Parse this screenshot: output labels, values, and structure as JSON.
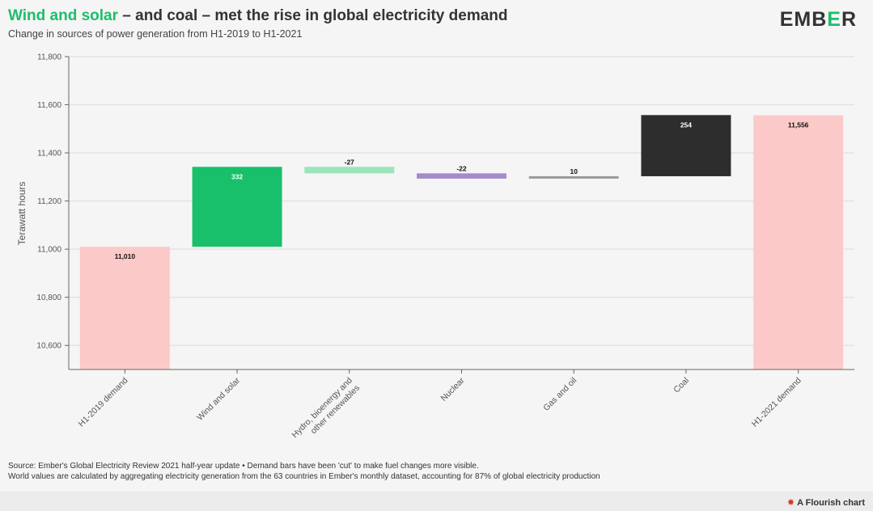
{
  "header": {
    "title_highlight": "Wind and solar",
    "title_rest": " – and coal – met the rise in global electricity demand",
    "subtitle": "Change in sources of power generation from H1-2019 to H1-2021"
  },
  "brand": {
    "logo_pre": "EMB",
    "logo_mark": "E",
    "logo_post": "R"
  },
  "colors": {
    "demand": "#fcc9c9",
    "wind_solar": "#18c06c",
    "hydro": "#9de4bc",
    "nuclear": "#a48bcb",
    "gas_oil": "#9a9a9a",
    "coal": "#2d2d2d",
    "grid": "#e3e3e3",
    "axis": "#666666"
  },
  "chart_data": {
    "type": "waterfall",
    "ylabel": "Terawatt hours",
    "ylim": [
      10500,
      11800
    ],
    "yticks": [
      10600,
      10800,
      11000,
      11200,
      11400,
      11600,
      11800
    ],
    "ytick_labels": [
      "10,600",
      "10,800",
      "11,000",
      "11,200",
      "11,400",
      "11,600",
      "11,800"
    ],
    "grid": true,
    "categories": [
      "H1-2019 demand",
      "Wind and solar",
      "Hydro, bioenergy and other renewables",
      "Nuclear",
      "Gas and oil",
      "Coal",
      "H1-2021 demand"
    ],
    "category_label_lines": [
      [
        "H1-2019 demand"
      ],
      [
        "Wind and solar"
      ],
      [
        "Hydro, bioenergy and",
        "other renewables"
      ],
      [
        "Nuclear"
      ],
      [
        "Gas and oil"
      ],
      [
        "Coal"
      ],
      [
        "H1-2021 demand"
      ]
    ],
    "bars": [
      {
        "name": "H1-2019 demand",
        "kind": "total",
        "value": 11010,
        "start": 10500,
        "end": 11010,
        "label": "11,010",
        "color_key": "demand"
      },
      {
        "name": "Wind and solar",
        "kind": "delta",
        "value": 332,
        "start": 11010,
        "end": 11342,
        "label": "332",
        "color_key": "wind_solar"
      },
      {
        "name": "Hydro, bioenergy and other renewables",
        "kind": "delta",
        "value": -27,
        "start": 11342,
        "end": 11315,
        "label": "-27",
        "color_key": "hydro"
      },
      {
        "name": "Nuclear",
        "kind": "delta",
        "value": -22,
        "start": 11315,
        "end": 11293,
        "label": "-22",
        "color_key": "nuclear"
      },
      {
        "name": "Gas and oil",
        "kind": "delta",
        "value": 10,
        "start": 11293,
        "end": 11303,
        "label": "10",
        "color_key": "gas_oil"
      },
      {
        "name": "Coal",
        "kind": "delta",
        "value": 254,
        "start": 11303,
        "end": 11557,
        "label": "254",
        "color_key": "coal"
      },
      {
        "name": "H1-2021 demand",
        "kind": "total",
        "value": 11556,
        "start": 10500,
        "end": 11556,
        "label": "11,556",
        "color_key": "demand"
      }
    ]
  },
  "footer": {
    "source": "Source: Ember's Global Electricity Review 2021 half-year update • Demand bars have been 'cut' to make fuel changes more visible.",
    "note": "World values are calculated by aggregating electricity generation from the 63 countries in Ember's monthly dataset, accounting for 87% of global electricity production"
  },
  "flourish": {
    "star": "✸",
    "label": "A Flourish chart"
  }
}
